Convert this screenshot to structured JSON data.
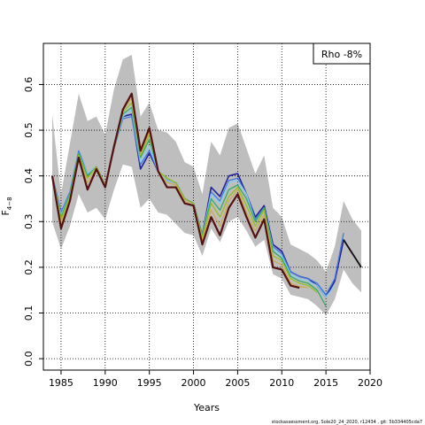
{
  "chart_data": {
    "type": "line",
    "xlabel": "Years",
    "ylabel_base": "F",
    "ylabel_sub": "4−8",
    "xlim": [
      1983,
      2020
    ],
    "ylim": [
      -0.025,
      0.69
    ],
    "x_ticks": [
      1985,
      1990,
      1995,
      2000,
      2005,
      2010,
      2015,
      2020
    ],
    "y_ticks": [
      0.0,
      0.1,
      0.2,
      0.3,
      0.4,
      0.5,
      0.6
    ],
    "y_tick_labels": [
      "0.0",
      "0.1",
      "0.2",
      "0.3",
      "0.4",
      "0.5",
      "0.6"
    ],
    "grid": true,
    "legend": {
      "placement": "top-right",
      "text": "Rho -8%"
    },
    "footer": "stockassessment.org, Sole20_24_2020, r12434 , git: 5b334405cda7",
    "band": {
      "x": [
        1984,
        1985,
        1986,
        1987,
        1988,
        1989,
        1990,
        1991,
        1992,
        1993,
        1994,
        1995,
        1996,
        1997,
        1998,
        1999,
        2000,
        2001,
        2002,
        2003,
        2004,
        2005,
        2006,
        2007,
        2008,
        2009,
        2010,
        2011,
        2012,
        2013,
        2014,
        2015,
        2016,
        2017,
        2018,
        2019
      ],
      "upper": [
        0.535,
        0.36,
        0.47,
        0.58,
        0.52,
        0.53,
        0.49,
        0.59,
        0.655,
        0.665,
        0.53,
        0.56,
        0.5,
        0.495,
        0.475,
        0.43,
        0.42,
        0.36,
        0.475,
        0.445,
        0.505,
        0.515,
        0.46,
        0.405,
        0.445,
        0.33,
        0.31,
        0.25,
        0.24,
        0.23,
        0.215,
        0.19,
        0.245,
        0.345,
        0.305,
        0.28
      ],
      "lower": [
        0.3,
        0.24,
        0.29,
        0.36,
        0.32,
        0.33,
        0.305,
        0.37,
        0.425,
        0.42,
        0.33,
        0.35,
        0.32,
        0.315,
        0.295,
        0.275,
        0.27,
        0.225,
        0.285,
        0.255,
        0.3,
        0.31,
        0.28,
        0.245,
        0.26,
        0.185,
        0.175,
        0.14,
        0.135,
        0.13,
        0.115,
        0.095,
        0.13,
        0.195,
        0.165,
        0.145
      ]
    },
    "series": [
      {
        "color": "#222299",
        "width": 1.6,
        "x": [
          1984,
          1985,
          1986,
          1987,
          1988,
          1989,
          1990,
          1991,
          1992,
          1993,
          1994,
          1995,
          1996,
          1997,
          1998,
          1999,
          2000,
          2001,
          2002,
          2003,
          2004,
          2005,
          2006,
          2007,
          2008,
          2009,
          2010,
          2011,
          2012,
          2013,
          2014,
          2015,
          2016,
          2017,
          2018
        ],
        "y": [
          0.4,
          0.32,
          0.36,
          0.45,
          0.4,
          0.42,
          0.38,
          0.46,
          0.53,
          0.535,
          0.415,
          0.45,
          0.41,
          0.39,
          0.385,
          0.35,
          0.34,
          0.27,
          0.375,
          0.355,
          0.4,
          0.405,
          0.36,
          0.31,
          0.335,
          0.25,
          0.235,
          0.19,
          0.18,
          0.175,
          0.16,
          0.135,
          0.17,
          0.26,
          0.23
        ]
      },
      {
        "color": "#4477dd",
        "width": 1.3,
        "x": [
          1984,
          1985,
          1986,
          1987,
          1988,
          1989,
          1990,
          1991,
          1992,
          1993,
          1994,
          1995,
          1996,
          1997,
          1998,
          1999,
          2000,
          2001,
          2002,
          2003,
          2004,
          2005,
          2006,
          2007,
          2008,
          2009,
          2010,
          2011,
          2012,
          2013,
          2014,
          2015,
          2016,
          2017
        ],
        "y": [
          0.4,
          0.32,
          0.365,
          0.455,
          0.405,
          0.42,
          0.38,
          0.46,
          0.525,
          0.53,
          0.425,
          0.455,
          0.41,
          0.39,
          0.385,
          0.35,
          0.34,
          0.27,
          0.365,
          0.345,
          0.39,
          0.395,
          0.36,
          0.305,
          0.33,
          0.245,
          0.23,
          0.19,
          0.18,
          0.175,
          0.165,
          0.14,
          0.175,
          0.275
        ]
      },
      {
        "color": "#88ccee",
        "width": 1.3,
        "x": [
          1984,
          1985,
          1986,
          1987,
          1988,
          1989,
          1990,
          1991,
          1992,
          1993,
          1994,
          1995,
          1996,
          1997,
          1998,
          1999,
          2000,
          2001,
          2002,
          2003,
          2004,
          2005,
          2006,
          2007,
          2008,
          2009,
          2010,
          2011,
          2012,
          2013,
          2014,
          2015,
          2016
        ],
        "y": [
          0.4,
          0.315,
          0.36,
          0.45,
          0.405,
          0.42,
          0.38,
          0.46,
          0.53,
          0.545,
          0.43,
          0.465,
          0.41,
          0.39,
          0.385,
          0.35,
          0.34,
          0.27,
          0.36,
          0.34,
          0.385,
          0.39,
          0.36,
          0.3,
          0.33,
          0.24,
          0.225,
          0.185,
          0.175,
          0.17,
          0.16,
          0.135,
          0.16
        ]
      },
      {
        "color": "#33aa66",
        "width": 1.3,
        "x": [
          1984,
          1985,
          1986,
          1987,
          1988,
          1989,
          1990,
          1991,
          1992,
          1993,
          1994,
          1995,
          1996,
          1997,
          1998,
          1999,
          2000,
          2001,
          2002,
          2003,
          2004,
          2005,
          2006,
          2007,
          2008,
          2009,
          2010,
          2011,
          2012,
          2013,
          2014,
          2015
        ],
        "y": [
          0.4,
          0.31,
          0.36,
          0.45,
          0.4,
          0.42,
          0.38,
          0.46,
          0.535,
          0.55,
          0.44,
          0.48,
          0.41,
          0.395,
          0.385,
          0.35,
          0.34,
          0.27,
          0.35,
          0.325,
          0.37,
          0.38,
          0.35,
          0.3,
          0.33,
          0.235,
          0.22,
          0.18,
          0.17,
          0.165,
          0.15,
          0.115
        ]
      },
      {
        "color": "#99bb22",
        "width": 1.3,
        "x": [
          1984,
          1985,
          1986,
          1987,
          1988,
          1989,
          1990,
          1991,
          1992,
          1993,
          1994,
          1995,
          1996,
          1997,
          1998,
          1999,
          2000,
          2001,
          2002,
          2003,
          2004,
          2005,
          2006,
          2007,
          2008,
          2009,
          2010,
          2011,
          2012,
          2013,
          2014
        ],
        "y": [
          0.4,
          0.305,
          0.355,
          0.445,
          0.395,
          0.42,
          0.38,
          0.46,
          0.54,
          0.56,
          0.445,
          0.49,
          0.41,
          0.395,
          0.385,
          0.35,
          0.34,
          0.265,
          0.34,
          0.31,
          0.355,
          0.375,
          0.335,
          0.29,
          0.325,
          0.225,
          0.215,
          0.175,
          0.165,
          0.16,
          0.145
        ]
      },
      {
        "color": "#ccaa55",
        "width": 1.3,
        "x": [
          1984,
          1985,
          1986,
          1987,
          1988,
          1989,
          1990,
          1991,
          1992,
          1993,
          1994,
          1995,
          1996,
          1997,
          1998,
          1999,
          2000,
          2001,
          2002,
          2003,
          2004,
          2005,
          2006,
          2007,
          2008,
          2009,
          2010,
          2011,
          2012,
          2013
        ],
        "y": [
          0.4,
          0.295,
          0.35,
          0.44,
          0.385,
          0.415,
          0.38,
          0.46,
          0.545,
          0.57,
          0.45,
          0.495,
          0.41,
          0.385,
          0.38,
          0.345,
          0.335,
          0.26,
          0.325,
          0.29,
          0.345,
          0.37,
          0.32,
          0.28,
          0.315,
          0.215,
          0.205,
          0.165,
          0.158,
          0.155
        ]
      },
      {
        "color": "#551111",
        "width": 2.2,
        "x": [
          1984,
          1985,
          1986,
          1987,
          1988,
          1989,
          1990,
          1991,
          1992,
          1993,
          1994,
          1995,
          1996,
          1997,
          1998,
          1999,
          2000,
          2001,
          2002,
          2003,
          2004,
          2005,
          2006,
          2007,
          2008,
          2009,
          2010,
          2011,
          2012
        ],
        "y": [
          0.4,
          0.285,
          0.345,
          0.44,
          0.37,
          0.415,
          0.375,
          0.465,
          0.545,
          0.58,
          0.455,
          0.505,
          0.41,
          0.375,
          0.375,
          0.34,
          0.335,
          0.25,
          0.31,
          0.27,
          0.33,
          0.36,
          0.31,
          0.265,
          0.305,
          0.2,
          0.195,
          0.16,
          0.155
        ]
      },
      {
        "color": "#111111",
        "width": 1.8,
        "x": [
          2017,
          2018,
          2019
        ],
        "y": [
          0.26,
          0.23,
          0.2
        ]
      }
    ]
  }
}
